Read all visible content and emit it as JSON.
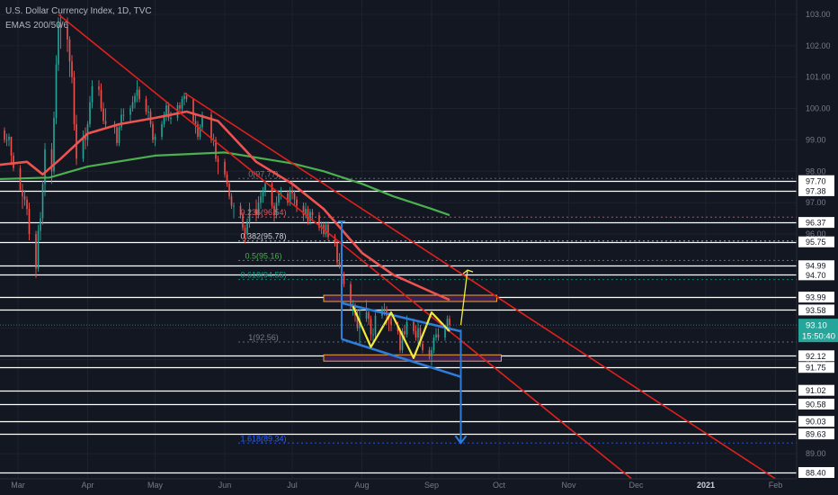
{
  "header": {
    "title": "U.S. Dollar Currency Index, 1D, TVC",
    "indicator": "EMAS 200/50/6"
  },
  "theme": {
    "background": "#131722",
    "candle_up": "#26a69a",
    "candle_down": "#ef5350",
    "ema_fast": "#ef5350",
    "ema_slow": "#4caf50",
    "trendline": "#e0201b",
    "channel": "#2e7dd8",
    "w_pattern": "#f5eb3b",
    "zone_fill": "#3b1f55",
    "zone_border": "#f5a623",
    "level_line": "#ffffff",
    "fib_line": "#787b86"
  },
  "chart_data": {
    "type": "candlestick",
    "title": "U.S. Dollar Currency Index, 1D, TVC",
    "indicator": "EMAS 200/50/6",
    "x_axis_labels": [
      "Mar",
      "Apr",
      "May",
      "Jun",
      "Jul",
      "Aug",
      "Sep",
      "Oct",
      "Nov",
      "Dec",
      "2021",
      "Feb"
    ],
    "y_axis_ticks": [
      "103.00",
      "102.00",
      "101.00",
      "100.00",
      "99.00",
      "98.00",
      "97.00",
      "96.00",
      "95.00",
      "94.00",
      "93.00",
      "92.00",
      "91.00",
      "90.00",
      "89.00",
      "88.40"
    ],
    "ylim": [
      88.2,
      103.4
    ],
    "horizontal_levels": [
      97.7,
      97.38,
      96.37,
      95.75,
      94.99,
      94.7,
      93.99,
      93.58,
      92.12,
      91.75,
      91.02,
      90.58,
      90.03,
      89.63,
      88.4
    ],
    "current_price": "93.10",
    "countdown": "15:50:40",
    "fibonacci": [
      {
        "label": "0(97.77)",
        "value": 97.77
      },
      {
        "label": "0.236(96.54)",
        "value": 96.54
      },
      {
        "label": "0.382(95.78)",
        "value": 95.78
      },
      {
        "label": "0.5(95.16)",
        "value": 95.16
      },
      {
        "label": "0.618(94.55)",
        "value": 94.55
      },
      {
        "label": "1(92.56)",
        "value": 92.56
      },
      {
        "label": "1.618(89.34)",
        "value": 89.34
      }
    ],
    "zones": [
      {
        "from_date": "2020-07-15",
        "to_date": "2020-09-30",
        "high": 94.05,
        "low": 93.85
      },
      {
        "from_date": "2020-07-15",
        "to_date": "2020-10-02",
        "high": 92.15,
        "low": 91.95
      }
    ],
    "ema_fast_points": [
      [
        "2020-02-21",
        98.2
      ],
      [
        "2020-03-05",
        98.3
      ],
      [
        "2020-03-12",
        97.9
      ],
      [
        "2020-03-20",
        98.4
      ],
      [
        "2020-04-01",
        99.2
      ],
      [
        "2020-04-15",
        99.5
      ],
      [
        "2020-05-01",
        99.7
      ],
      [
        "2020-05-15",
        99.9
      ],
      [
        "2020-05-29",
        99.6
      ],
      [
        "2020-06-15",
        98.3
      ],
      [
        "2020-07-01",
        97.6
      ],
      [
        "2020-07-15",
        96.8
      ],
      [
        "2020-08-01",
        95.4
      ],
      [
        "2020-08-15",
        94.7
      ],
      [
        "2020-09-01",
        94.15
      ],
      [
        "2020-09-09",
        93.9
      ]
    ],
    "ema_slow_points": [
      [
        "2020-02-21",
        97.75
      ],
      [
        "2020-03-15",
        97.8
      ],
      [
        "2020-04-01",
        98.15
      ],
      [
        "2020-05-01",
        98.5
      ],
      [
        "2020-06-01",
        98.6
      ],
      [
        "2020-07-01",
        98.25
      ],
      [
        "2020-07-15",
        98.0
      ],
      [
        "2020-08-01",
        97.6
      ],
      [
        "2020-08-15",
        97.2
      ],
      [
        "2020-09-01",
        96.8
      ],
      [
        "2020-09-09",
        96.6
      ]
    ],
    "trendlines": [
      {
        "from": [
          "2020-03-19",
          103.0
        ],
        "to": [
          "2020-11-29",
          88.2
        ]
      },
      {
        "from": [
          "2020-05-14",
          100.5
        ],
        "to": [
          "2021-02-01",
          88.2
        ]
      }
    ],
    "channel_lines": [
      {
        "from": [
          "2020-07-23",
          93.8
        ],
        "to": [
          "2020-09-14",
          92.9
        ]
      },
      {
        "from": [
          "2020-07-23",
          92.65
        ],
        "to": [
          "2020-09-14",
          91.45
        ]
      }
    ],
    "w_pattern": [
      [
        "2020-07-28",
        93.7
      ],
      [
        "2020-08-05",
        92.4
      ],
      [
        "2020-08-14",
        93.5
      ],
      [
        "2020-08-24",
        92.05
      ],
      [
        "2020-09-01",
        93.5
      ],
      [
        "2020-09-09",
        92.9
      ]
    ],
    "measured_moves": [
      {
        "date": "2020-07-23",
        "from": 92.65,
        "to": 96.4,
        "arrow": "up"
      },
      {
        "date": "2020-09-14",
        "from": 92.95,
        "to": 89.34,
        "arrow": "down"
      }
    ],
    "breakout_arrow": {
      "from": [
        "2020-09-14",
        93.1
      ],
      "to": [
        "2020-09-17",
        94.85
      ]
    },
    "ohlc": [
      [
        "2020-02-24",
        99.3,
        99.4,
        98.9,
        99.0
      ],
      [
        "2020-02-25",
        99.0,
        99.2,
        98.8,
        99.0
      ],
      [
        "2020-02-26",
        99.0,
        99.2,
        98.8,
        99.1
      ],
      [
        "2020-02-27",
        99.1,
        99.1,
        98.2,
        98.5
      ],
      [
        "2020-02-28",
        98.5,
        98.6,
        98.0,
        98.1
      ],
      [
        "2020-03-02",
        98.1,
        98.2,
        97.4,
        97.4
      ],
      [
        "2020-03-03",
        97.4,
        97.6,
        96.8,
        97.2
      ],
      [
        "2020-03-04",
        97.2,
        97.4,
        96.9,
        97.1
      ],
      [
        "2020-03-05",
        97.1,
        97.2,
        96.6,
        96.8
      ],
      [
        "2020-03-06",
        96.8,
        97.0,
        95.8,
        96.0
      ],
      [
        "2020-03-09",
        96.0,
        96.1,
        94.6,
        94.9
      ],
      [
        "2020-03-10",
        94.9,
        96.3,
        94.8,
        96.1
      ],
      [
        "2020-03-11",
        96.1,
        96.7,
        95.8,
        96.5
      ],
      [
        "2020-03-12",
        96.5,
        97.7,
        96.3,
        97.6
      ],
      [
        "2020-03-13",
        97.6,
        98.9,
        97.2,
        98.7
      ],
      [
        "2020-03-16",
        98.7,
        98.9,
        97.6,
        98.0
      ],
      [
        "2020-03-17",
        98.0,
        99.9,
        97.9,
        99.7
      ],
      [
        "2020-03-18",
        99.7,
        101.7,
        99.5,
        101.4
      ],
      [
        "2020-03-19",
        101.4,
        102.9,
        101.2,
        102.7
      ],
      [
        "2020-03-20",
        102.7,
        103.0,
        101.9,
        102.6
      ],
      [
        "2020-03-23",
        102.6,
        102.9,
        101.8,
        102.2
      ],
      [
        "2020-03-24",
        102.2,
        102.3,
        101.0,
        101.5
      ],
      [
        "2020-03-25",
        101.5,
        101.7,
        100.8,
        101.0
      ],
      [
        "2020-03-26",
        101.0,
        101.2,
        99.3,
        99.5
      ],
      [
        "2020-03-27",
        99.5,
        99.8,
        98.2,
        98.4
      ],
      [
        "2020-03-30",
        98.4,
        99.3,
        98.3,
        99.1
      ],
      [
        "2020-03-31",
        99.1,
        99.4,
        98.7,
        99.0
      ],
      [
        "2020-04-01",
        99.0,
        99.6,
        98.8,
        99.5
      ],
      [
        "2020-04-02",
        99.5,
        100.4,
        99.4,
        100.2
      ],
      [
        "2020-04-03",
        100.2,
        100.9,
        100.0,
        100.7
      ],
      [
        "2020-04-06",
        100.7,
        100.9,
        100.4,
        100.6
      ],
      [
        "2020-04-07",
        100.6,
        100.8,
        99.9,
        100.0
      ],
      [
        "2020-04-08",
        100.0,
        100.2,
        99.5,
        99.6
      ],
      [
        "2020-04-09",
        99.6,
        100.0,
        99.4,
        99.5
      ],
      [
        "2020-04-13",
        99.5,
        99.6,
        99.2,
        99.4
      ],
      [
        "2020-04-14",
        99.4,
        99.5,
        98.8,
        98.9
      ],
      [
        "2020-04-15",
        98.9,
        99.5,
        98.8,
        99.4
      ],
      [
        "2020-04-16",
        99.4,
        100.0,
        99.3,
        99.8
      ],
      [
        "2020-04-17",
        99.8,
        100.0,
        99.6,
        99.8
      ],
      [
        "2020-04-20",
        99.8,
        100.1,
        99.6,
        100.0
      ],
      [
        "2020-04-21",
        100.0,
        100.4,
        99.9,
        100.2
      ],
      [
        "2020-04-22",
        100.2,
        100.5,
        100.0,
        100.4
      ],
      [
        "2020-04-23",
        100.4,
        100.9,
        100.2,
        100.6
      ],
      [
        "2020-04-24",
        100.6,
        100.7,
        100.2,
        100.3
      ],
      [
        "2020-04-27",
        100.3,
        100.4,
        99.8,
        99.9
      ],
      [
        "2020-04-28",
        99.9,
        100.1,
        99.7,
        99.9
      ],
      [
        "2020-04-29",
        99.9,
        100.0,
        99.4,
        99.5
      ],
      [
        "2020-04-30",
        99.5,
        99.6,
        98.9,
        99.0
      ],
      [
        "2020-05-01",
        99.0,
        99.2,
        98.8,
        99.1
      ],
      [
        "2020-05-04",
        99.1,
        99.6,
        99.0,
        99.5
      ],
      [
        "2020-05-05",
        99.5,
        99.9,
        99.4,
        99.8
      ],
      [
        "2020-05-06",
        99.8,
        100.2,
        99.6,
        100.1
      ],
      [
        "2020-05-07",
        100.1,
        100.2,
        99.6,
        99.7
      ],
      [
        "2020-05-08",
        99.7,
        99.9,
        99.5,
        99.7
      ],
      [
        "2020-05-11",
        99.7,
        100.2,
        99.6,
        100.1
      ],
      [
        "2020-05-12",
        100.1,
        100.2,
        99.9,
        100.0
      ],
      [
        "2020-05-13",
        100.0,
        100.4,
        99.9,
        100.3
      ],
      [
        "2020-05-14",
        100.3,
        100.5,
        100.1,
        100.4
      ],
      [
        "2020-05-15",
        100.4,
        100.5,
        100.2,
        100.3
      ],
      [
        "2020-05-18",
        100.3,
        100.3,
        99.5,
        99.6
      ],
      [
        "2020-05-19",
        99.6,
        99.8,
        99.2,
        99.5
      ],
      [
        "2020-05-20",
        99.5,
        99.6,
        99.0,
        99.1
      ],
      [
        "2020-05-21",
        99.1,
        99.5,
        99.0,
        99.4
      ],
      [
        "2020-05-22",
        99.4,
        99.9,
        99.3,
        99.8
      ],
      [
        "2020-05-26",
        99.8,
        99.9,
        98.9,
        99.0
      ],
      [
        "2020-05-27",
        99.0,
        99.2,
        98.8,
        99.0
      ],
      [
        "2020-05-28",
        99.0,
        99.1,
        98.3,
        98.4
      ],
      [
        "2020-05-29",
        98.4,
        98.5,
        97.9,
        98.3
      ],
      [
        "2020-06-01",
        98.3,
        98.4,
        97.8,
        97.9
      ],
      [
        "2020-06-02",
        97.9,
        98.0,
        97.5,
        97.6
      ],
      [
        "2020-06-03",
        97.6,
        97.7,
        97.1,
        97.2
      ],
      [
        "2020-06-04",
        97.2,
        97.3,
        96.8,
        96.9
      ],
      [
        "2020-06-05",
        96.9,
        97.0,
        96.5,
        96.9
      ],
      [
        "2020-06-08",
        96.9,
        97.0,
        96.5,
        96.6
      ],
      [
        "2020-06-09",
        96.6,
        96.7,
        96.1,
        96.2
      ],
      [
        "2020-06-10",
        96.2,
        96.3,
        95.7,
        96.0
      ],
      [
        "2020-06-11",
        96.0,
        96.5,
        95.9,
        96.4
      ],
      [
        "2020-06-12",
        96.4,
        97.0,
        96.2,
        96.8
      ],
      [
        "2020-06-15",
        96.8,
        97.1,
        96.4,
        96.6
      ],
      [
        "2020-06-16",
        96.6,
        97.2,
        96.5,
        97.0
      ],
      [
        "2020-06-17",
        97.0,
        97.4,
        96.8,
        97.2
      ],
      [
        "2020-06-18",
        97.2,
        97.5,
        97.0,
        97.4
      ],
      [
        "2020-06-19",
        97.4,
        97.7,
        97.2,
        97.6
      ],
      [
        "2020-06-22",
        97.6,
        97.7,
        96.8,
        96.9
      ],
      [
        "2020-06-23",
        96.9,
        97.0,
        96.4,
        96.6
      ],
      [
        "2020-06-24",
        96.6,
        97.2,
        96.5,
        97.0
      ],
      [
        "2020-06-25",
        97.0,
        97.4,
        96.9,
        97.3
      ],
      [
        "2020-06-26",
        97.3,
        97.5,
        97.1,
        97.3
      ],
      [
        "2020-06-29",
        97.3,
        97.4,
        96.9,
        97.0
      ],
      [
        "2020-06-30",
        97.0,
        97.5,
        96.9,
        97.4
      ],
      [
        "2020-07-01",
        97.4,
        97.7,
        97.1,
        97.3
      ],
      [
        "2020-07-02",
        97.3,
        97.4,
        96.9,
        97.1
      ],
      [
        "2020-07-03",
        97.1,
        97.2,
        96.7,
        96.9
      ],
      [
        "2020-07-06",
        96.9,
        97.0,
        96.4,
        96.6
      ],
      [
        "2020-07-07",
        96.6,
        97.0,
        96.5,
        96.8
      ],
      [
        "2020-07-08",
        96.8,
        96.9,
        96.3,
        96.4
      ],
      [
        "2020-07-09",
        96.4,
        96.8,
        96.3,
        96.7
      ],
      [
        "2020-07-10",
        96.7,
        96.8,
        96.4,
        96.6
      ],
      [
        "2020-07-13",
        96.6,
        96.7,
        96.1,
        96.2
      ],
      [
        "2020-07-14",
        96.2,
        96.4,
        96.0,
        96.3
      ],
      [
        "2020-07-15",
        96.3,
        96.4,
        95.9,
        96.0
      ],
      [
        "2020-07-16",
        96.0,
        96.4,
        95.9,
        96.3
      ],
      [
        "2020-07-17",
        96.3,
        96.4,
        95.8,
        95.9
      ],
      [
        "2020-07-20",
        95.9,
        96.0,
        95.6,
        95.7
      ],
      [
        "2020-07-21",
        95.7,
        95.8,
        95.0,
        95.1
      ],
      [
        "2020-07-22",
        95.1,
        95.4,
        94.9,
        95.0
      ],
      [
        "2020-07-23",
        95.0,
        95.1,
        94.6,
        94.7
      ],
      [
        "2020-07-24",
        94.7,
        94.8,
        94.3,
        94.4
      ],
      [
        "2020-07-27",
        94.4,
        94.5,
        93.6,
        93.7
      ],
      [
        "2020-07-28",
        93.7,
        93.9,
        93.4,
        93.7
      ],
      [
        "2020-07-29",
        93.7,
        93.8,
        93.2,
        93.4
      ],
      [
        "2020-07-30",
        93.4,
        93.6,
        92.9,
        93.0
      ],
      [
        "2020-07-31",
        93.0,
        93.6,
        92.5,
        93.3
      ],
      [
        "2020-08-03",
        93.3,
        93.9,
        93.2,
        93.5
      ],
      [
        "2020-08-04",
        93.5,
        93.6,
        93.1,
        93.3
      ],
      [
        "2020-08-05",
        93.3,
        93.4,
        92.6,
        92.8
      ],
      [
        "2020-08-06",
        92.8,
        93.0,
        92.5,
        92.8
      ],
      [
        "2020-08-07",
        92.8,
        93.5,
        92.7,
        93.4
      ],
      [
        "2020-08-10",
        93.4,
        93.7,
        93.3,
        93.6
      ],
      [
        "2020-08-11",
        93.6,
        93.8,
        93.4,
        93.6
      ],
      [
        "2020-08-12",
        93.6,
        93.7,
        93.1,
        93.4
      ],
      [
        "2020-08-13",
        93.4,
        93.5,
        92.9,
        93.3
      ],
      [
        "2020-08-14",
        93.3,
        93.4,
        92.9,
        93.1
      ],
      [
        "2020-08-17",
        93.1,
        93.2,
        92.8,
        92.9
      ],
      [
        "2020-08-18",
        92.9,
        93.0,
        92.2,
        92.3
      ],
      [
        "2020-08-19",
        92.3,
        93.0,
        92.2,
        92.9
      ],
      [
        "2020-08-20",
        92.9,
        93.1,
        92.6,
        92.8
      ],
      [
        "2020-08-21",
        92.8,
        93.4,
        92.7,
        93.2
      ],
      [
        "2020-08-24",
        93.2,
        93.3,
        92.8,
        92.9
      ],
      [
        "2020-08-25",
        92.9,
        93.1,
        92.6,
        92.7
      ],
      [
        "2020-08-26",
        92.7,
        93.2,
        92.5,
        93.0
      ],
      [
        "2020-08-27",
        93.0,
        93.1,
        92.4,
        92.5
      ],
      [
        "2020-08-28",
        92.5,
        92.6,
        92.2,
        92.3
      ],
      [
        "2020-08-31",
        92.3,
        92.4,
        92.0,
        92.1
      ],
      [
        "2020-09-01",
        92.1,
        92.4,
        91.8,
        92.3
      ],
      [
        "2020-09-02",
        92.3,
        92.8,
        92.2,
        92.7
      ],
      [
        "2020-09-03",
        92.7,
        93.0,
        92.6,
        92.8
      ],
      [
        "2020-09-04",
        92.8,
        93.0,
        92.6,
        92.7
      ],
      [
        "2020-09-07",
        92.7,
        93.1,
        92.6,
        93.0
      ],
      [
        "2020-09-08",
        93.0,
        93.4,
        92.9,
        93.3
      ],
      [
        "2020-09-09",
        93.3,
        93.4,
        93.0,
        93.1
      ]
    ]
  }
}
